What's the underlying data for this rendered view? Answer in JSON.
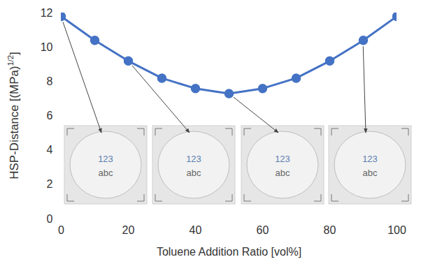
{
  "chart_data": {
    "type": "line",
    "xlabel": "Toluene Addition Ratio [vol%]",
    "ylabel_parts": [
      "HSP-Distance [(MPa)",
      "1/2",
      "]"
    ],
    "x": [
      0,
      10,
      20,
      30,
      40,
      50,
      60,
      70,
      80,
      90,
      100
    ],
    "values": [
      11.8,
      10.4,
      9.2,
      8.2,
      7.6,
      7.3,
      7.6,
      8.2,
      9.2,
      10.4,
      11.8
    ],
    "color": "#4472c4",
    "marker": "circle",
    "xlim": [
      0,
      100
    ],
    "xticks": [
      0,
      20,
      40,
      60,
      80,
      100
    ],
    "ylim": [
      0,
      12
    ],
    "yticks": [
      0,
      2,
      4,
      6,
      8,
      10,
      12
    ],
    "grid": false,
    "insets": [
      {
        "x": 0,
        "texts": [
          "123",
          "abc"
        ]
      },
      {
        "x": 20,
        "texts": [
          "123",
          "abc"
        ]
      },
      {
        "x": 50,
        "texts": [
          "123",
          "abc"
        ]
      },
      {
        "x": 90,
        "texts": [
          "123",
          "abc"
        ]
      }
    ]
  }
}
